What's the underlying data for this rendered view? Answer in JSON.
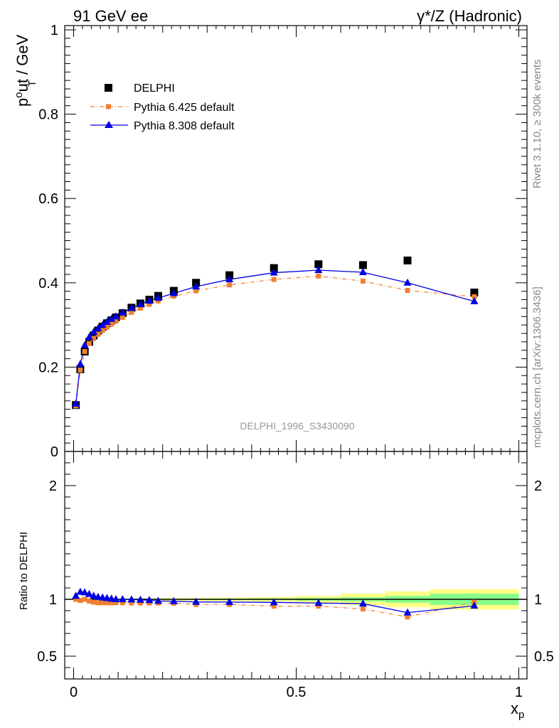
{
  "header": {
    "left": "91 GeV ee",
    "right_prefix": "γ*/Z",
    "right_suffix": " (Hadronic)"
  },
  "side_text": {
    "rivet": "Rivet 3.1.10, ≥ 300k events",
    "mcplots": "mcplots.cern.ch [arXiv:1306.3436]"
  },
  "analysis_label": "DELPHI_1996_S3430090",
  "legend": {
    "data": "DELPHI",
    "py6": "Pythia 6.425 default",
    "py8": "Pythia 8.308 default"
  },
  "colors": {
    "data": "#000000",
    "py6": "#f08030",
    "py8": "#0000e0",
    "band_stat": "#88ff88",
    "band_total": "#ffff88"
  },
  "chart_data": [
    {
      "type": "scatter",
      "panel": "main",
      "ylabel_main": "p",
      "ylabel_sup": "o",
      "ylabel_sub": "T",
      "ylabel_rest": "ut / GeV",
      "xlim": [
        0,
        1
      ],
      "ylim": [
        0,
        1
      ],
      "yticks": [
        "0",
        "0.2",
        "0.4",
        "0.6",
        "0.8",
        "1"
      ],
      "x": [
        0.005,
        0.015,
        0.025,
        0.035,
        0.045,
        0.055,
        0.065,
        0.075,
        0.085,
        0.095,
        0.11,
        0.13,
        0.15,
        0.17,
        0.19,
        0.225,
        0.275,
        0.35,
        0.45,
        0.55,
        0.65,
        0.75,
        0.9
      ],
      "series": [
        {
          "name": "DELPHI",
          "values": [
            0.11,
            0.195,
            0.237,
            0.26,
            0.275,
            0.287,
            0.296,
            0.304,
            0.311,
            0.318,
            0.328,
            0.341,
            0.351,
            0.36,
            0.369,
            0.381,
            0.4,
            0.418,
            0.435,
            0.444,
            0.442,
            0.453,
            0.377
          ]
        },
        {
          "name": "Pythia 6.425 default",
          "values": [
            0.108,
            0.193,
            0.237,
            0.256,
            0.268,
            0.278,
            0.287,
            0.295,
            0.302,
            0.309,
            0.318,
            0.33,
            0.34,
            0.349,
            0.357,
            0.368,
            0.381,
            0.395,
            0.408,
            0.416,
            0.404,
            0.382,
            0.367
          ]
        },
        {
          "name": "Pythia 8.308 default",
          "values": [
            0.113,
            0.207,
            0.252,
            0.271,
            0.283,
            0.292,
            0.3,
            0.307,
            0.314,
            0.32,
            0.329,
            0.34,
            0.349,
            0.357,
            0.364,
            0.375,
            0.391,
            0.408,
            0.424,
            0.43,
            0.425,
            0.4,
            0.356
          ]
        }
      ]
    },
    {
      "type": "line",
      "panel": "ratio",
      "ylabel": "Ratio to DELPHI",
      "xlabel_main": "x",
      "xlabel_sub": "p",
      "xlim": [
        0,
        1
      ],
      "ylim": [
        0.3,
        2.3
      ],
      "yticks": [
        "0.5",
        "1",
        "2"
      ],
      "xticks": [
        "0",
        "0.5",
        "1"
      ],
      "x": [
        0.005,
        0.015,
        0.025,
        0.035,
        0.045,
        0.055,
        0.065,
        0.075,
        0.085,
        0.095,
        0.11,
        0.13,
        0.15,
        0.17,
        0.19,
        0.225,
        0.275,
        0.35,
        0.45,
        0.55,
        0.65,
        0.75,
        0.9
      ],
      "band_edges": [
        0,
        0.01,
        0.02,
        0.03,
        0.04,
        0.05,
        0.06,
        0.07,
        0.08,
        0.09,
        0.1,
        0.12,
        0.14,
        0.16,
        0.18,
        0.2,
        0.25,
        0.3,
        0.4,
        0.5,
        0.6,
        0.7,
        0.8,
        1.0
      ],
      "band_stat": [
        0.005,
        0.005,
        0.005,
        0.005,
        0.005,
        0.005,
        0.005,
        0.005,
        0.005,
        0.005,
        0.005,
        0.005,
        0.005,
        0.005,
        0.005,
        0.005,
        0.005,
        0.006,
        0.008,
        0.012,
        0.018,
        0.03,
        0.05
      ],
      "band_total": [
        0.01,
        0.01,
        0.01,
        0.01,
        0.01,
        0.01,
        0.01,
        0.01,
        0.01,
        0.01,
        0.01,
        0.01,
        0.01,
        0.01,
        0.01,
        0.012,
        0.012,
        0.015,
        0.02,
        0.03,
        0.05,
        0.07,
        0.09
      ],
      "series": [
        {
          "name": "Pythia 6.425 default",
          "values": [
            1.0,
            0.99,
            1.0,
            0.985,
            0.975,
            0.97,
            0.97,
            0.97,
            0.97,
            0.97,
            0.97,
            0.968,
            0.968,
            0.968,
            0.968,
            0.966,
            0.955,
            0.955,
            0.94,
            0.94,
            0.915,
            0.845,
            0.975
          ]
        },
        {
          "name": "Pythia 8.308 default",
          "values": [
            1.03,
            1.065,
            1.06,
            1.045,
            1.03,
            1.02,
            1.015,
            1.01,
            1.005,
            1.0,
            1.0,
            0.998,
            0.995,
            0.992,
            0.985,
            0.983,
            0.977,
            0.976,
            0.973,
            0.967,
            0.962,
            0.883,
            0.943
          ]
        }
      ]
    }
  ]
}
